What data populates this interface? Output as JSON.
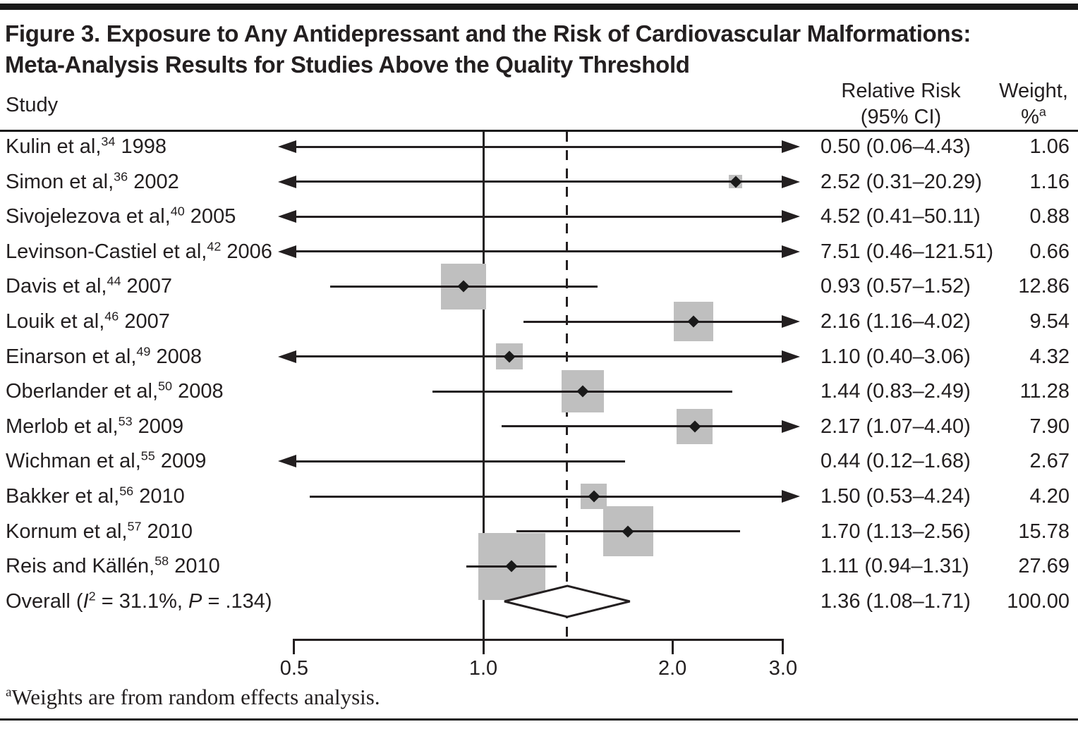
{
  "figure": {
    "title_lines": [
      "Figure 3. Exposure to Any Antidepressant and the Risk of Cardiovascular Malformations:",
      "Meta-Analysis Results for Studies Above the Quality Threshold"
    ],
    "columns": {
      "study": "Study",
      "rr_line1": "Relative Risk",
      "rr_line2": "(95% CI)",
      "weight_line1": "Weight,",
      "weight_line2_base": "%",
      "weight_line2_sup": "a"
    },
    "footnote": {
      "sup": "a",
      "text": "Weights are from random effects analysis."
    }
  },
  "chart_data": {
    "type": "forest",
    "x_scale": "log10",
    "x_ticks": [
      0.5,
      1.0,
      2.0,
      3.0
    ],
    "x_tick_labels": [
      "0.5",
      "1.0",
      "2.0",
      "3.0"
    ],
    "reference_line": 1.0,
    "overall_dashed_line": 1.36,
    "colors": {
      "box": "#bfbfbf",
      "ink": "#231f20"
    },
    "studies": [
      {
        "label": "Kulin et al,",
        "ref": "34",
        "year": "1998",
        "rr": 0.5,
        "ci_low": 0.06,
        "ci_high": 4.43,
        "rr_text": "0.50 (0.06–4.43)",
        "weight": 1.06,
        "weight_text": "1.06",
        "marker": false,
        "arrow_left": true,
        "arrow_right": true
      },
      {
        "label": "Simon et al,",
        "ref": "36",
        "year": "2002",
        "rr": 2.52,
        "ci_low": 0.31,
        "ci_high": 20.29,
        "rr_text": "2.52 (0.31–20.29)",
        "weight": 1.16,
        "weight_text": "1.16",
        "marker": true,
        "arrow_left": true,
        "arrow_right": true
      },
      {
        "label": "Sivojelezova et al,",
        "ref": "40",
        "year": "2005",
        "rr": 4.52,
        "ci_low": 0.41,
        "ci_high": 50.11,
        "rr_text": "4.52 (0.41–50.11)",
        "weight": 0.88,
        "weight_text": "0.88",
        "marker": false,
        "arrow_left": true,
        "arrow_right": true
      },
      {
        "label": "Levinson-Castiel et al,",
        "ref": "42",
        "year": "2006",
        "rr": 7.51,
        "ci_low": 0.46,
        "ci_high": 121.51,
        "rr_text": "7.51 (0.46–121.51)",
        "weight": 0.66,
        "weight_text": "0.66",
        "marker": false,
        "arrow_left": true,
        "arrow_right": true
      },
      {
        "label": "Davis et al,",
        "ref": "44",
        "year": "2007",
        "rr": 0.93,
        "ci_low": 0.57,
        "ci_high": 1.52,
        "rr_text": "0.93 (0.57–1.52)",
        "weight": 12.86,
        "weight_text": "12.86",
        "marker": true,
        "arrow_left": false,
        "arrow_right": false
      },
      {
        "label": "Louik et al,",
        "ref": "46",
        "year": "2007",
        "rr": 2.16,
        "ci_low": 1.16,
        "ci_high": 4.02,
        "rr_text": "2.16 (1.16–4.02)",
        "weight": 9.54,
        "weight_text": "9.54",
        "marker": true,
        "arrow_left": false,
        "arrow_right": true
      },
      {
        "label": "Einarson et al,",
        "ref": "49",
        "year": "2008",
        "rr": 1.1,
        "ci_low": 0.4,
        "ci_high": 3.06,
        "rr_text": "1.10 (0.40–3.06)",
        "weight": 4.32,
        "weight_text": "4.32",
        "marker": true,
        "arrow_left": true,
        "arrow_right": true
      },
      {
        "label": "Oberlander et al,",
        "ref": "50",
        "year": "2008",
        "rr": 1.44,
        "ci_low": 0.83,
        "ci_high": 2.49,
        "rr_text": "1.44 (0.83–2.49)",
        "weight": 11.28,
        "weight_text": "11.28",
        "marker": true,
        "arrow_left": false,
        "arrow_right": false
      },
      {
        "label": "Merlob et al,",
        "ref": "53",
        "year": "2009",
        "rr": 2.17,
        "ci_low": 1.07,
        "ci_high": 4.4,
        "rr_text": "2.17 (1.07–4.40)",
        "weight": 7.9,
        "weight_text": "7.90",
        "marker": true,
        "arrow_left": false,
        "arrow_right": true
      },
      {
        "label": "Wichman et al,",
        "ref": "55",
        "year": "2009",
        "rr": 0.44,
        "ci_low": 0.12,
        "ci_high": 1.68,
        "rr_text": "0.44 (0.12–1.68)",
        "weight": 2.67,
        "weight_text": "2.67",
        "marker": false,
        "arrow_left": true,
        "arrow_right": false
      },
      {
        "label": "Bakker et al,",
        "ref": "56",
        "year": "2010",
        "rr": 1.5,
        "ci_low": 0.53,
        "ci_high": 4.24,
        "rr_text": "1.50 (0.53–4.24)",
        "weight": 4.2,
        "weight_text": "4.20",
        "marker": true,
        "arrow_left": false,
        "arrow_right": true
      },
      {
        "label": "Kornum et al,",
        "ref": "57",
        "year": "2010",
        "rr": 1.7,
        "ci_low": 1.13,
        "ci_high": 2.56,
        "rr_text": "1.70 (1.13–2.56)",
        "weight": 15.78,
        "weight_text": "15.78",
        "marker": true,
        "arrow_left": false,
        "arrow_right": false
      },
      {
        "label": "Reis and Källén,",
        "ref": "58",
        "year": "2010",
        "rr": 1.11,
        "ci_low": 0.94,
        "ci_high": 1.31,
        "rr_text": "1.11 (0.94–1.31)",
        "weight": 27.69,
        "weight_text": "27.69",
        "marker": true,
        "arrow_left": false,
        "arrow_right": false
      }
    ],
    "overall": {
      "label_parts": {
        "pre": "Overall (",
        "i1": "I",
        "sup": "2",
        "mid": " = 31.1%, ",
        "i2": "P",
        "post": " = .134)"
      },
      "rr": 1.36,
      "ci_low": 1.08,
      "ci_high": 1.71,
      "rr_text": "1.36 (1.08–1.71)",
      "weight": 100.0,
      "weight_text": "100.00"
    }
  }
}
